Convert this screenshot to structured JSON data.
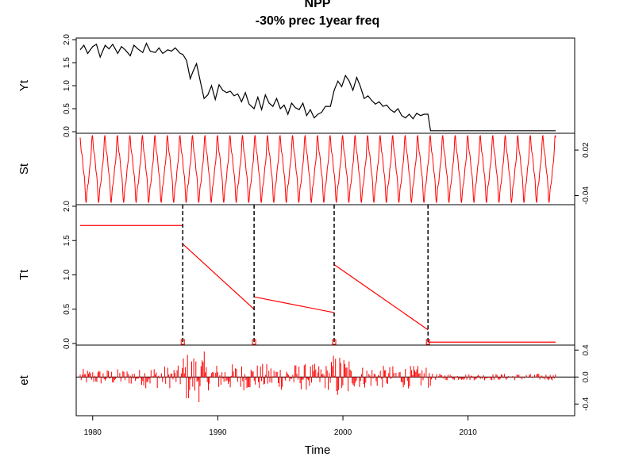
{
  "chart_data": {
    "type": "line",
    "title": "NPP",
    "subtitle": "-30% prec  1year freq",
    "xlabel": "Time",
    "x_range": [
      1979,
      2017
    ],
    "x_ticks": [
      1980,
      1990,
      2000,
      2010
    ],
    "breakpoints": [
      1987.2,
      1992.9,
      1999.3,
      2006.8
    ],
    "colors": {
      "observed": "#000000",
      "components": "#ff0000",
      "breaks": "#000000"
    },
    "panels": [
      {
        "name": "Yt",
        "ylim": [
          0,
          2
        ],
        "y_ticks": [
          0.0,
          0.5,
          1.0,
          1.5,
          2.0
        ],
        "y_tick_labels": [
          "0.0",
          "0.5",
          "1.0",
          "1.5",
          "2.0"
        ],
        "axis_side": "left",
        "series": {
          "style": "line",
          "x": [
            1979.0,
            1979.3,
            1979.6,
            1980.0,
            1980.3,
            1980.6,
            1981.0,
            1981.3,
            1981.6,
            1982.0,
            1982.3,
            1982.6,
            1983.0,
            1983.3,
            1983.6,
            1984.0,
            1984.3,
            1984.6,
            1985.0,
            1985.3,
            1985.6,
            1986.0,
            1986.3,
            1986.6,
            1987.0,
            1987.2,
            1987.5,
            1987.8,
            1988.0,
            1988.3,
            1988.6,
            1988.9,
            1989.2,
            1989.5,
            1989.8,
            1990.1,
            1990.4,
            1990.7,
            1991.0,
            1991.3,
            1991.6,
            1991.9,
            1992.2,
            1992.5,
            1992.9,
            1993.2,
            1993.5,
            1993.8,
            1994.1,
            1994.4,
            1994.7,
            1995.0,
            1995.3,
            1995.6,
            1995.9,
            1996.2,
            1996.5,
            1996.8,
            1997.1,
            1997.4,
            1997.7,
            1998.0,
            1998.3,
            1998.6,
            1999.0,
            1999.3,
            1999.6,
            1999.9,
            2000.2,
            2000.5,
            2000.8,
            2001.1,
            2001.4,
            2001.7,
            2002.0,
            2002.3,
            2002.6,
            2002.9,
            2003.2,
            2003.5,
            2003.8,
            2004.1,
            2004.4,
            2004.7,
            2005.0,
            2005.3,
            2005.6,
            2005.9,
            2006.2,
            2006.5,
            2006.8,
            2007.0,
            2017.0
          ],
          "y": [
            1.78,
            1.88,
            1.7,
            1.85,
            1.9,
            1.62,
            1.88,
            1.8,
            1.9,
            1.7,
            1.85,
            1.78,
            1.65,
            1.88,
            1.8,
            1.72,
            1.92,
            1.75,
            1.72,
            1.82,
            1.7,
            1.78,
            1.75,
            1.82,
            1.7,
            1.68,
            1.55,
            1.15,
            1.3,
            1.48,
            1.1,
            0.72,
            0.8,
            1.0,
            0.7,
            1.02,
            0.9,
            0.85,
            0.88,
            0.78,
            0.82,
            0.65,
            0.85,
            0.6,
            0.5,
            0.75,
            0.48,
            0.8,
            0.62,
            0.55,
            0.72,
            0.5,
            0.58,
            0.38,
            0.62,
            0.52,
            0.48,
            0.62,
            0.35,
            0.48,
            0.3,
            0.38,
            0.42,
            0.55,
            0.55,
            0.9,
            1.1,
            0.98,
            1.22,
            1.1,
            0.9,
            1.18,
            0.98,
            0.72,
            0.78,
            0.68,
            0.6,
            0.65,
            0.55,
            0.58,
            0.48,
            0.42,
            0.5,
            0.35,
            0.3,
            0.38,
            0.28,
            0.4,
            0.35,
            0.38,
            0.38,
            0.02,
            0.02
          ]
        }
      },
      {
        "name": "St",
        "ylim": [
          -0.05,
          0.04
        ],
        "y_ticks": [
          -0.04,
          0.02
        ],
        "y_tick_labels": [
          "-0.04",
          "0.02"
        ],
        "axis_side": "right",
        "series": {
          "style": "seasonal",
          "period_years": 1.0,
          "mean": -0.005,
          "components": [
            {
              "harmonic": 1,
              "amplitude": 0.035,
              "phase": 0.0
            },
            {
              "harmonic": 3,
              "amplitude": 0.006,
              "phase": 0.6
            },
            {
              "harmonic": 5,
              "amplitude": 0.004,
              "phase": 1.2
            }
          ]
        }
      },
      {
        "name": "Tt",
        "ylim": [
          0,
          2
        ],
        "y_ticks": [
          0.0,
          0.5,
          1.0,
          1.5,
          2.0
        ],
        "y_tick_labels": [
          "0.0",
          "0.5",
          "1.0",
          "1.5",
          "2.0"
        ],
        "axis_side": "left",
        "series": {
          "style": "segments",
          "segments": [
            {
              "x": [
                1979.0,
                1987.2
              ],
              "y": [
                1.72,
                1.72
              ]
            },
            {
              "x": [
                1987.2,
                1992.9
              ],
              "y": [
                1.45,
                0.5
              ]
            },
            {
              "x": [
                1992.9,
                1999.3
              ],
              "y": [
                0.68,
                0.45
              ]
            },
            {
              "x": [
                1999.3,
                2006.8
              ],
              "y": [
                1.15,
                0.2
              ]
            },
            {
              "x": [
                2006.8,
                2017.0
              ],
              "y": [
                0.02,
                0.02
              ]
            }
          ]
        }
      },
      {
        "name": "et",
        "ylim": [
          -0.55,
          0.45
        ],
        "y_ticks": [
          -0.4,
          0.0,
          0.4
        ],
        "y_tick_labels": [
          "-0.4",
          "0.0",
          "0.4"
        ],
        "axis_side": "right",
        "series": {
          "style": "spikes",
          "interval_years": 0.0833,
          "envelope": [
            {
              "x": [
                1979.0,
                1984.0
              ],
              "amplitude": 0.12
            },
            {
              "x": [
                1984.0,
                1987.0
              ],
              "amplitude": 0.17
            },
            {
              "x": [
                1987.0,
                1989.0
              ],
              "amplitude": 0.38
            },
            {
              "x": [
                1989.0,
                1999.0
              ],
              "amplitude": 0.2
            },
            {
              "x": [
                1999.0,
                2000.5
              ],
              "amplitude": 0.35
            },
            {
              "x": [
                2000.5,
                2007.0
              ],
              "amplitude": 0.17
            },
            {
              "x": [
                2007.0,
                2017.0
              ],
              "amplitude": 0.05
            }
          ]
        }
      }
    ]
  }
}
